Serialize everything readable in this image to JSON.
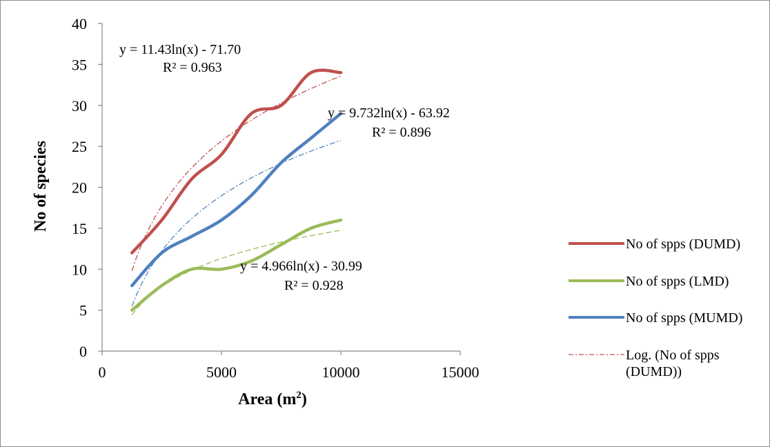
{
  "chart_data": {
    "type": "line",
    "xlabel": "Area (m",
    "xlabel_sup": "2",
    "xlabel_close": ")",
    "ylabel": "No of species",
    "xlim": [
      0,
      15000
    ],
    "ylim": [
      0,
      40
    ],
    "x_ticks": [
      "0",
      "5000",
      "10000",
      "15000"
    ],
    "y_ticks": [
      "0",
      "5",
      "10",
      "15",
      "20",
      "25",
      "30",
      "35",
      "40"
    ],
    "x_tick_values": [
      0,
      5000,
      10000,
      15000
    ],
    "y_tick_values": [
      0,
      5,
      10,
      15,
      20,
      25,
      30,
      35,
      40
    ],
    "grid": false,
    "legend_position": "right",
    "series": [
      {
        "name": "No of spps (DUMD)",
        "color": "#C0504D",
        "x": [
          1250,
          2500,
          3750,
          5000,
          6250,
          7500,
          8750,
          10000
        ],
        "y": [
          12,
          16,
          21,
          24,
          29,
          30,
          34,
          34
        ]
      },
      {
        "name": "No of spps (LMD)",
        "color": "#9BBB59",
        "x": [
          1250,
          2500,
          3750,
          5000,
          6250,
          7500,
          8750,
          10000
        ],
        "y": [
          5,
          8,
          10,
          10,
          11,
          13,
          15,
          16
        ]
      },
      {
        "name": "No of spps (MUMD)",
        "color": "#4F81BD",
        "x": [
          1250,
          2500,
          3750,
          5000,
          6250,
          7500,
          8750,
          10000
        ],
        "y": [
          8,
          12,
          14,
          16,
          19,
          23,
          26,
          29
        ]
      }
    ],
    "trendlines": [
      {
        "legend_name": "Log. (No of spps (DUMD))",
        "legend_line1": "Log. (No of spps",
        "legend_line2": "(DUMD))",
        "color": "#C0504D",
        "a": 11.43,
        "b": -71.7,
        "equation": "y = 11.43ln(x) - 71.70",
        "r2": "R² = 0.963"
      },
      {
        "color": "#4F81BD",
        "a": 9.732,
        "b": -63.92,
        "equation": "y = 9.732ln(x) - 63.92",
        "r2": "R² = 0.896"
      },
      {
        "color": "#9BBB59",
        "a": 4.966,
        "b": -30.99,
        "equation": "y = 4.966ln(x) - 30.99",
        "r2": "R² = 0.928"
      }
    ]
  }
}
